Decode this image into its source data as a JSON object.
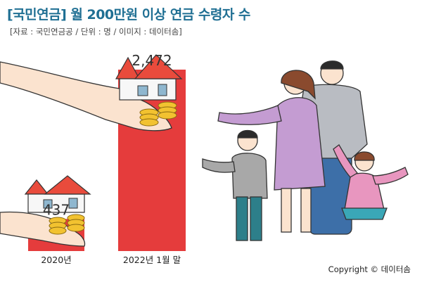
{
  "title": "[국민연금] 월 200만원 이상 연금 수령자 수",
  "source": "[자료 : 국민연금공 / 단위 : 명 / 이미지 : 데이터솜]",
  "copyright": "Copyright © 데이터솜",
  "colors": {
    "bar": "#e53c3c",
    "title": "#1f6f93"
  },
  "chart_data": {
    "type": "bar",
    "categories": [
      "2020년",
      "2022년 1월 말"
    ],
    "values": [
      437,
      2472
    ],
    "value_labels": [
      "437",
      "2,472"
    ],
    "ylim": [
      0,
      2472
    ],
    "grid": false
  }
}
